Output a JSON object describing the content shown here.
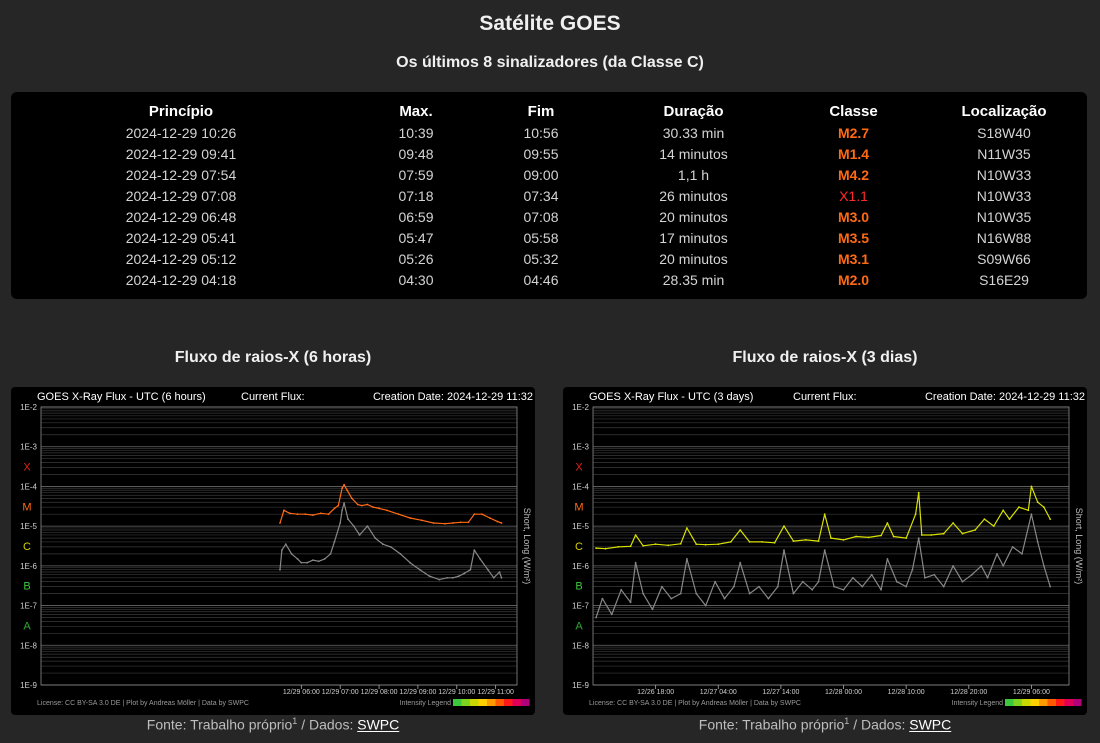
{
  "page": {
    "title": "Satélite GOES",
    "subtitle": "Os últimos 8 sinalizadores (da Classe C)"
  },
  "flares": {
    "headers": [
      "Princípio",
      "Max.",
      "Fim",
      "Duração",
      "Classe",
      "Localização"
    ],
    "rows": [
      {
        "start": "2024-12-29 10:26",
        "max": "10:39",
        "end": "10:56",
        "duration": "30.33 min",
        "class": "M2.7",
        "location": "S18W40"
      },
      {
        "start": "2024-12-29 09:41",
        "max": "09:48",
        "end": "09:55",
        "duration": "14 minutos",
        "class": "M1.4",
        "location": "N11W35"
      },
      {
        "start": "2024-12-29 07:54",
        "max": "07:59",
        "end": "09:00",
        "duration": "1,1 h",
        "class": "M4.2",
        "location": "N10W33"
      },
      {
        "start": "2024-12-29 07:08",
        "max": "07:18",
        "end": "07:34",
        "duration": "26 minutos",
        "class": "X1.1",
        "location": "N10W33"
      },
      {
        "start": "2024-12-29 06:48",
        "max": "06:59",
        "end": "07:08",
        "duration": "20 minutos",
        "class": "M3.0",
        "location": "N10W35"
      },
      {
        "start": "2024-12-29 05:41",
        "max": "05:47",
        "end": "05:58",
        "duration": "17 minutos",
        "class": "M3.5",
        "location": "N16W88"
      },
      {
        "start": "2024-12-29 05:12",
        "max": "05:26",
        "end": "05:32",
        "duration": "20 minutos",
        "class": "M3.1",
        "location": "S09W66"
      },
      {
        "start": "2024-12-29 04:18",
        "max": "04:30",
        "end": "04:46",
        "duration": "28.35 min",
        "class": "M2.0",
        "location": "S16E29"
      }
    ]
  },
  "colors": {
    "class_m": "#ff6a13",
    "class_x": "#ff2a2a",
    "short_series": "#888888",
    "class_label_x": "#e02020",
    "class_label_m": "#ff6a13",
    "class_label_c": "#d8d000",
    "class_label_b": "#3cc83c",
    "class_label_a": "#2ea82e"
  },
  "charts": {
    "left_title": "Fluxo de raios-X (6 horas)",
    "right_title": "Fluxo de raios-X (3 dias)"
  },
  "chart_data": [
    {
      "type": "line",
      "title": "GOES X-Ray Flux - UTC (6 hours)",
      "current_flux_label": "Current Flux:",
      "creation_date": "Creation Date: 2024-12-29 11:32",
      "ylabel": "Short, Long (W/m²)",
      "yscale": "log",
      "ylim": [
        1e-09,
        0.01
      ],
      "y_ticks": [
        "1E-2",
        "1E-3",
        "1E-4",
        "1E-5",
        "1E-6",
        "1E-7",
        "1E-8",
        "1E-9"
      ],
      "class_labels": [
        "X",
        "M",
        "C",
        "B",
        "A"
      ],
      "x_ticks": [
        "12/29 06:00",
        "12/29 07:00",
        "12/29 08:00",
        "12/29 09:00",
        "12/29 10:00",
        "12/29 11:00"
      ],
      "xlim": [
        -0.7,
        11.55
      ],
      "x_tick_positions": [
        6,
        7,
        8,
        9,
        10,
        11
      ],
      "license": "License: CC BY-SA 3.0 DE | Plot by Andreas Möller | Data by SWPC",
      "intensity_legend": "Intensity Legend",
      "series": [
        {
          "name": "Long",
          "color": "#ff6a13",
          "x": [
            5.45,
            5.55,
            5.7,
            5.9,
            6.1,
            6.3,
            6.5,
            6.7,
            6.85,
            6.95,
            7.05,
            7.1,
            7.18,
            7.3,
            7.45,
            7.55,
            7.7,
            7.85,
            8.0,
            8.2,
            8.5,
            8.8,
            9.1,
            9.4,
            9.7,
            9.9,
            10.1,
            10.3,
            10.45,
            10.65,
            10.85,
            11.05,
            11.15
          ],
          "y": [
            1.2e-05,
            2.5e-05,
            2.1e-05,
            2e-05,
            2e-05,
            1.9e-05,
            2.1e-05,
            2e-05,
            2.8e-05,
            3.3e-05,
            9e-05,
            0.00011,
            8e-05,
            5e-05,
            3.5e-05,
            3.3e-05,
            3.5e-05,
            3e-05,
            2.8e-05,
            2.5e-05,
            2e-05,
            1.6e-05,
            1.4e-05,
            1.2e-05,
            1.15e-05,
            1.2e-05,
            1.25e-05,
            1.25e-05,
            2e-05,
            2e-05,
            1.6e-05,
            1.3e-05,
            1.2e-05
          ]
        },
        {
          "name": "Short",
          "color": "#888888",
          "x": [
            5.45,
            5.5,
            5.6,
            5.75,
            5.9,
            6.0,
            6.15,
            6.3,
            6.45,
            6.6,
            6.75,
            6.85,
            7.0,
            7.05,
            7.1,
            7.2,
            7.35,
            7.5,
            7.7,
            7.9,
            8.1,
            8.3,
            8.55,
            8.8,
            9.05,
            9.3,
            9.55,
            9.75,
            9.9,
            10.05,
            10.2,
            10.35,
            10.45,
            10.6,
            10.8,
            10.95,
            11.1,
            11.15
          ],
          "y": [
            8e-07,
            2.5e-06,
            3.5e-06,
            2e-06,
            1.5e-06,
            1.2e-06,
            1.2e-06,
            1.4e-06,
            1.3e-06,
            1.5e-06,
            2e-06,
            4e-06,
            1.2e-05,
            2.5e-05,
            3.8e-05,
            1.5e-05,
            1e-05,
            6e-06,
            1e-05,
            5e-06,
            3.5e-06,
            3e-06,
            2e-06,
            1.2e-06,
            8e-07,
            5.5e-07,
            4.5e-07,
            5e-07,
            5e-07,
            5.5e-07,
            6.5e-07,
            8e-07,
            2.5e-06,
            1.5e-06,
            8e-07,
            5e-07,
            7e-07,
            5e-07
          ]
        }
      ]
    },
    {
      "type": "line",
      "title": "GOES X-Ray Flux - UTC (3 days)",
      "current_flux_label": "Current Flux:",
      "creation_date": "Creation Date: 2024-12-29 11:32",
      "ylabel": "Short, Long (W/m²)",
      "yscale": "log",
      "ylim": [
        1e-09,
        0.01
      ],
      "y_ticks": [
        "1E-2",
        "1E-3",
        "1E-4",
        "1E-5",
        "1E-6",
        "1E-7",
        "1E-8",
        "1E-9"
      ],
      "class_labels": [
        "X",
        "M",
        "C",
        "B",
        "A"
      ],
      "x_ticks": [
        "12/26 18:00",
        "12/27 04:00",
        "12/27 14:00",
        "12/28 00:00",
        "12/28 10:00",
        "12/28 20:00",
        "12/29 06:00"
      ],
      "xlim": [
        8,
        84
      ],
      "x_tick_positions": [
        18,
        28,
        38,
        48,
        58,
        68,
        78
      ],
      "license": "License: CC BY-SA 3.0 DE | Plot by Andreas Möller | Data by SWPC",
      "intensity_legend": "Intensity Legend",
      "series": [
        {
          "name": "Long",
          "color": "#d8e000",
          "x": [
            8.5,
            10,
            12,
            14,
            14.8,
            16,
            18,
            20,
            22,
            23,
            24.5,
            26,
            28,
            30,
            31.5,
            33,
            35,
            37,
            38.5,
            40,
            42,
            44,
            45,
            46,
            48,
            50,
            52,
            54,
            55,
            56,
            58,
            59.5,
            60,
            60.5,
            62,
            64,
            65.5,
            67,
            69,
            70.5,
            72,
            73.5,
            74.5,
            76,
            77.5,
            78,
            79,
            80,
            81
          ],
          "y": [
            2.8e-06,
            2.7e-06,
            3e-06,
            3.1e-06,
            6e-06,
            3.2e-06,
            3.5e-06,
            3.3e-06,
            3.6e-06,
            9e-06,
            3.5e-06,
            3.4e-06,
            3.5e-06,
            4e-06,
            8e-06,
            4e-06,
            4e-06,
            3.8e-06,
            1e-05,
            4.2e-06,
            4.5e-06,
            4.2e-06,
            2e-05,
            5e-06,
            4.5e-06,
            5.5e-06,
            5.2e-06,
            5.8e-06,
            1.2e-05,
            5.5e-06,
            5e-06,
            2e-05,
            7e-05,
            6e-06,
            6e-06,
            6.5e-06,
            1.2e-05,
            6.5e-06,
            8e-06,
            1.5e-05,
            1e-05,
            2.5e-05,
            1.5e-05,
            3e-05,
            2.5e-05,
            0.0001,
            4e-05,
            3e-05,
            1.5e-05
          ]
        },
        {
          "name": "Short",
          "color": "#888888",
          "x": [
            8.5,
            9.5,
            11,
            12.5,
            14,
            14.8,
            16,
            17.5,
            19,
            20.5,
            22,
            23,
            24.5,
            26,
            27.5,
            29,
            30.5,
            31.5,
            33,
            34.5,
            36,
            37.5,
            38.5,
            40,
            41.5,
            43,
            44,
            45,
            46.5,
            48,
            49.5,
            51,
            52.5,
            54,
            55,
            56.5,
            58,
            59,
            60,
            61,
            62.5,
            64,
            65.5,
            67,
            68.5,
            70,
            71,
            72.5,
            73.5,
            75,
            76.5,
            78,
            79,
            80,
            81
          ],
          "y": [
            5e-08,
            1.5e-07,
            6e-08,
            2.5e-07,
            1.2e-07,
            1.2e-06,
            2e-07,
            8e-08,
            3e-07,
            1.5e-07,
            2e-07,
            1.5e-06,
            2e-07,
            1e-07,
            4e-07,
            1.5e-07,
            3e-07,
            1.2e-06,
            2e-07,
            3e-07,
            1.5e-07,
            3e-07,
            2.5e-06,
            2e-07,
            4e-07,
            2.5e-07,
            4e-07,
            2.5e-06,
            3e-07,
            2.5e-07,
            5e-07,
            3e-07,
            6e-07,
            2.5e-07,
            1.5e-06,
            4e-07,
            3e-07,
            8e-07,
            5e-06,
            5e-07,
            6e-07,
            3e-07,
            1e-06,
            4e-07,
            6e-07,
            1e-06,
            5e-07,
            2e-06,
            1e-06,
            3e-06,
            2e-06,
            2e-05,
            4e-06,
            1e-06,
            3e-07
          ]
        }
      ]
    }
  ],
  "footer": {
    "source_text": "Fonte: Trabalho próprio",
    "sup": "1",
    "data_text": " / Dados: ",
    "link": "SWPC"
  }
}
